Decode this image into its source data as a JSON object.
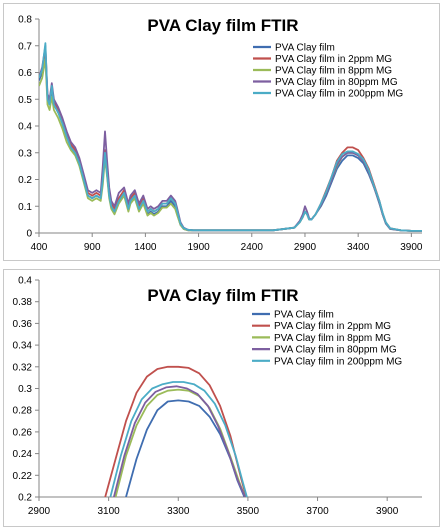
{
  "chart_data": [
    {
      "type": "line",
      "title": "PVA Clay film FTIR",
      "xlabel": "",
      "ylabel": "",
      "xlim": [
        400,
        4000
      ],
      "ylim": [
        0,
        0.8
      ],
      "xticks": [
        400,
        900,
        1400,
        1900,
        2400,
        2900,
        3400,
        3900
      ],
      "yticks": [
        0,
        0.1,
        0.2,
        0.3,
        0.4,
        0.5,
        0.6,
        0.7,
        0.8
      ],
      "ytick_labels": [
        "0",
        "0.1",
        "0.2",
        "0.3",
        "0.4",
        "0.5",
        "0.6",
        "0.7",
        "0.8"
      ],
      "grid": false,
      "legend_position": "top-right",
      "series": [
        {
          "name": "PVA Clay film",
          "color": "#3f6db0",
          "x": [
            400,
            430,
            460,
            480,
            500,
            520,
            540,
            580,
            620,
            660,
            700,
            740,
            780,
            820,
            860,
            900,
            940,
            980,
            1000,
            1020,
            1040,
            1060,
            1080,
            1110,
            1150,
            1200,
            1240,
            1260,
            1300,
            1340,
            1380,
            1420,
            1450,
            1480,
            1520,
            1560,
            1600,
            1640,
            1660,
            1680,
            1700,
            1730,
            1760,
            1800,
            1850,
            1900,
            2000,
            2200,
            2400,
            2600,
            2800,
            2850,
            2880,
            2900,
            2920,
            2940,
            2960,
            2980,
            3000,
            3050,
            3100,
            3150,
            3200,
            3250,
            3300,
            3350,
            3400,
            3450,
            3500,
            3550,
            3600,
            3630,
            3660,
            3700,
            3800,
            3900,
            4000
          ],
          "y": [
            0.57,
            0.6,
            0.67,
            0.5,
            0.48,
            0.53,
            0.48,
            0.45,
            0.41,
            0.36,
            0.32,
            0.3,
            0.26,
            0.2,
            0.14,
            0.13,
            0.14,
            0.13,
            0.2,
            0.3,
            0.22,
            0.14,
            0.1,
            0.08,
            0.12,
            0.15,
            0.09,
            0.12,
            0.14,
            0.09,
            0.12,
            0.07,
            0.08,
            0.07,
            0.08,
            0.1,
            0.1,
            0.12,
            0.11,
            0.1,
            0.07,
            0.03,
            0.015,
            0.01,
            0.01,
            0.01,
            0.01,
            0.01,
            0.01,
            0.01,
            0.02,
            0.04,
            0.06,
            0.08,
            0.07,
            0.05,
            0.05,
            0.06,
            0.07,
            0.1,
            0.14,
            0.19,
            0.24,
            0.27,
            0.29,
            0.29,
            0.28,
            0.26,
            0.22,
            0.17,
            0.11,
            0.07,
            0.035,
            0.015,
            0.01,
            0.008,
            0.008
          ]
        },
        {
          "name": "PVA Clay film in 2ppm MG",
          "color": "#c0504d",
          "x": [
            400,
            430,
            460,
            480,
            500,
            520,
            540,
            580,
            620,
            660,
            700,
            740,
            780,
            820,
            860,
            900,
            940,
            980,
            1000,
            1020,
            1040,
            1060,
            1080,
            1110,
            1150,
            1200,
            1240,
            1260,
            1300,
            1340,
            1380,
            1420,
            1450,
            1480,
            1520,
            1560,
            1600,
            1640,
            1660,
            1680,
            1700,
            1730,
            1760,
            1800,
            1850,
            1900,
            2000,
            2200,
            2400,
            2600,
            2800,
            2850,
            2880,
            2900,
            2920,
            2940,
            2960,
            2980,
            3000,
            3050,
            3100,
            3150,
            3200,
            3250,
            3300,
            3350,
            3400,
            3450,
            3500,
            3550,
            3600,
            3630,
            3660,
            3700,
            3800,
            3900,
            4000
          ],
          "y": [
            0.58,
            0.61,
            0.69,
            0.51,
            0.49,
            0.54,
            0.49,
            0.46,
            0.42,
            0.37,
            0.33,
            0.31,
            0.27,
            0.21,
            0.15,
            0.14,
            0.15,
            0.14,
            0.21,
            0.31,
            0.23,
            0.15,
            0.11,
            0.09,
            0.13,
            0.16,
            0.1,
            0.13,
            0.15,
            0.1,
            0.13,
            0.08,
            0.09,
            0.08,
            0.09,
            0.11,
            0.11,
            0.13,
            0.12,
            0.11,
            0.08,
            0.035,
            0.018,
            0.012,
            0.01,
            0.01,
            0.01,
            0.01,
            0.01,
            0.01,
            0.02,
            0.04,
            0.06,
            0.08,
            0.07,
            0.05,
            0.05,
            0.06,
            0.07,
            0.11,
            0.16,
            0.21,
            0.27,
            0.3,
            0.32,
            0.32,
            0.31,
            0.28,
            0.24,
            0.18,
            0.12,
            0.075,
            0.04,
            0.018,
            0.01,
            0.008,
            0.008
          ]
        },
        {
          "name": "PVA Clay film in 8ppm MG",
          "color": "#9bbb59",
          "x": [
            400,
            430,
            460,
            480,
            500,
            520,
            540,
            580,
            620,
            660,
            700,
            740,
            780,
            820,
            860,
            900,
            940,
            980,
            1000,
            1020,
            1040,
            1060,
            1080,
            1110,
            1150,
            1200,
            1240,
            1260,
            1300,
            1340,
            1380,
            1420,
            1450,
            1480,
            1520,
            1560,
            1600,
            1640,
            1660,
            1680,
            1700,
            1730,
            1760,
            1800,
            1850,
            1900,
            2000,
            2200,
            2400,
            2600,
            2800,
            2850,
            2880,
            2900,
            2920,
            2940,
            2960,
            2980,
            3000,
            3050,
            3100,
            3150,
            3200,
            3250,
            3300,
            3350,
            3400,
            3450,
            3500,
            3550,
            3600,
            3630,
            3660,
            3700,
            3800,
            3900,
            4000
          ],
          "y": [
            0.55,
            0.58,
            0.65,
            0.48,
            0.46,
            0.51,
            0.46,
            0.43,
            0.39,
            0.34,
            0.31,
            0.29,
            0.25,
            0.19,
            0.13,
            0.12,
            0.13,
            0.12,
            0.18,
            0.28,
            0.21,
            0.13,
            0.09,
            0.07,
            0.11,
            0.14,
            0.08,
            0.11,
            0.13,
            0.08,
            0.11,
            0.065,
            0.075,
            0.065,
            0.075,
            0.095,
            0.095,
            0.11,
            0.1,
            0.09,
            0.065,
            0.03,
            0.015,
            0.01,
            0.01,
            0.01,
            0.01,
            0.01,
            0.01,
            0.01,
            0.02,
            0.04,
            0.06,
            0.08,
            0.07,
            0.05,
            0.05,
            0.06,
            0.07,
            0.105,
            0.15,
            0.2,
            0.25,
            0.285,
            0.3,
            0.3,
            0.29,
            0.27,
            0.23,
            0.17,
            0.115,
            0.07,
            0.038,
            0.016,
            0.01,
            0.008,
            0.008
          ]
        },
        {
          "name": "PVA Clay film in 80ppm MG",
          "color": "#7d5fa0",
          "x": [
            400,
            430,
            460,
            480,
            500,
            520,
            540,
            580,
            620,
            660,
            700,
            740,
            780,
            820,
            860,
            900,
            940,
            980,
            1000,
            1020,
            1040,
            1060,
            1080,
            1110,
            1150,
            1200,
            1240,
            1260,
            1300,
            1340,
            1380,
            1420,
            1450,
            1480,
            1520,
            1560,
            1600,
            1640,
            1660,
            1680,
            1700,
            1730,
            1760,
            1800,
            1850,
            1900,
            2000,
            2200,
            2400,
            2600,
            2800,
            2850,
            2880,
            2900,
            2920,
            2940,
            2960,
            2980,
            3000,
            3050,
            3100,
            3150,
            3200,
            3250,
            3300,
            3350,
            3400,
            3450,
            3500,
            3550,
            3600,
            3630,
            3660,
            3700,
            3800,
            3900,
            4000
          ],
          "y": [
            0.58,
            0.62,
            0.7,
            0.52,
            0.5,
            0.56,
            0.5,
            0.47,
            0.43,
            0.38,
            0.34,
            0.32,
            0.28,
            0.22,
            0.16,
            0.15,
            0.16,
            0.15,
            0.25,
            0.38,
            0.27,
            0.17,
            0.12,
            0.1,
            0.15,
            0.17,
            0.11,
            0.14,
            0.16,
            0.11,
            0.14,
            0.09,
            0.1,
            0.09,
            0.1,
            0.12,
            0.12,
            0.14,
            0.13,
            0.12,
            0.09,
            0.04,
            0.02,
            0.012,
            0.01,
            0.01,
            0.01,
            0.01,
            0.01,
            0.01,
            0.02,
            0.045,
            0.07,
            0.1,
            0.08,
            0.055,
            0.05,
            0.06,
            0.07,
            0.105,
            0.15,
            0.2,
            0.255,
            0.285,
            0.3,
            0.3,
            0.29,
            0.27,
            0.23,
            0.17,
            0.115,
            0.07,
            0.038,
            0.016,
            0.01,
            0.008,
            0.008
          ]
        },
        {
          "name": "PVA Clay film in 200ppm MG",
          "color": "#4bacc6",
          "x": [
            400,
            430,
            460,
            480,
            500,
            520,
            540,
            580,
            620,
            660,
            700,
            740,
            780,
            820,
            860,
            900,
            940,
            980,
            1000,
            1020,
            1040,
            1060,
            1080,
            1110,
            1150,
            1200,
            1240,
            1260,
            1300,
            1340,
            1380,
            1420,
            1450,
            1480,
            1520,
            1560,
            1600,
            1640,
            1660,
            1680,
            1700,
            1730,
            1760,
            1800,
            1850,
            1900,
            2000,
            2200,
            2400,
            2600,
            2800,
            2850,
            2880,
            2900,
            2920,
            2940,
            2960,
            2980,
            3000,
            3050,
            3100,
            3150,
            3200,
            3250,
            3300,
            3350,
            3400,
            3450,
            3500,
            3550,
            3600,
            3630,
            3660,
            3700,
            3800,
            3900,
            4000
          ],
          "y": [
            0.58,
            0.61,
            0.71,
            0.5,
            0.48,
            0.55,
            0.48,
            0.45,
            0.41,
            0.36,
            0.32,
            0.3,
            0.26,
            0.2,
            0.14,
            0.13,
            0.14,
            0.13,
            0.2,
            0.3,
            0.22,
            0.14,
            0.1,
            0.08,
            0.12,
            0.15,
            0.09,
            0.12,
            0.14,
            0.09,
            0.12,
            0.08,
            0.09,
            0.08,
            0.09,
            0.11,
            0.11,
            0.13,
            0.12,
            0.11,
            0.08,
            0.035,
            0.018,
            0.012,
            0.01,
            0.01,
            0.01,
            0.01,
            0.01,
            0.01,
            0.02,
            0.04,
            0.06,
            0.08,
            0.07,
            0.05,
            0.05,
            0.06,
            0.07,
            0.11,
            0.155,
            0.21,
            0.265,
            0.295,
            0.305,
            0.305,
            0.295,
            0.275,
            0.235,
            0.175,
            0.12,
            0.075,
            0.04,
            0.018,
            0.01,
            0.008,
            0.008
          ]
        }
      ]
    },
    {
      "type": "line",
      "title": "PVA Clay film FTIR",
      "xlabel": "",
      "ylabel": "",
      "xlim": [
        2900,
        4000
      ],
      "ylim": [
        0.2,
        0.4
      ],
      "xticks": [
        2900,
        3100,
        3300,
        3500,
        3700,
        3900
      ],
      "yticks": [
        0.2,
        0.22,
        0.24,
        0.26,
        0.28,
        0.3,
        0.32,
        0.34,
        0.36,
        0.38,
        0.4
      ],
      "ytick_labels": [
        "0.2",
        "0.22",
        "0.24",
        "0.26",
        "0.28",
        "0.3",
        "0.32",
        "0.34",
        "0.36",
        "0.38",
        "0.4"
      ],
      "grid": false,
      "legend_position": "top-right",
      "series": [
        {
          "name": "PVA Clay film",
          "color": "#3f6db0",
          "x": [
            3150,
            3180,
            3210,
            3240,
            3270,
            3300,
            3330,
            3360,
            3390,
            3420,
            3450,
            3470,
            3490
          ],
          "y": [
            0.2,
            0.235,
            0.262,
            0.28,
            0.288,
            0.289,
            0.288,
            0.284,
            0.274,
            0.258,
            0.235,
            0.215,
            0.2
          ]
        },
        {
          "name": "PVA Clay film in 2ppm MG",
          "color": "#c0504d",
          "x": [
            3090,
            3120,
            3150,
            3180,
            3210,
            3240,
            3270,
            3300,
            3330,
            3360,
            3390,
            3420,
            3450,
            3480,
            3495
          ],
          "y": [
            0.2,
            0.235,
            0.27,
            0.296,
            0.311,
            0.318,
            0.32,
            0.32,
            0.319,
            0.314,
            0.303,
            0.284,
            0.256,
            0.218,
            0.2
          ]
        },
        {
          "name": "PVA Clay film in 8ppm MG",
          "color": "#9bbb59",
          "x": [
            3120,
            3150,
            3180,
            3210,
            3240,
            3270,
            3300,
            3330,
            3360,
            3390,
            3420,
            3450,
            3475,
            3492
          ],
          "y": [
            0.2,
            0.238,
            0.266,
            0.284,
            0.294,
            0.298,
            0.299,
            0.298,
            0.293,
            0.282,
            0.263,
            0.237,
            0.214,
            0.2
          ]
        },
        {
          "name": "PVA Clay film in 80ppm MG",
          "color": "#7d5fa0",
          "x": [
            3115,
            3145,
            3175,
            3205,
            3235,
            3265,
            3295,
            3325,
            3355,
            3385,
            3415,
            3445,
            3470,
            3492
          ],
          "y": [
            0.2,
            0.238,
            0.268,
            0.287,
            0.297,
            0.301,
            0.302,
            0.3,
            0.295,
            0.284,
            0.265,
            0.24,
            0.216,
            0.2
          ]
        },
        {
          "name": "PVA Clay film in 200ppm MG",
          "color": "#4bacc6",
          "x": [
            3105,
            3135,
            3165,
            3195,
            3225,
            3255,
            3285,
            3315,
            3345,
            3375,
            3405,
            3435,
            3465,
            3485,
            3497
          ],
          "y": [
            0.2,
            0.238,
            0.27,
            0.29,
            0.3,
            0.304,
            0.306,
            0.306,
            0.304,
            0.298,
            0.286,
            0.266,
            0.238,
            0.214,
            0.2
          ]
        }
      ]
    }
  ]
}
